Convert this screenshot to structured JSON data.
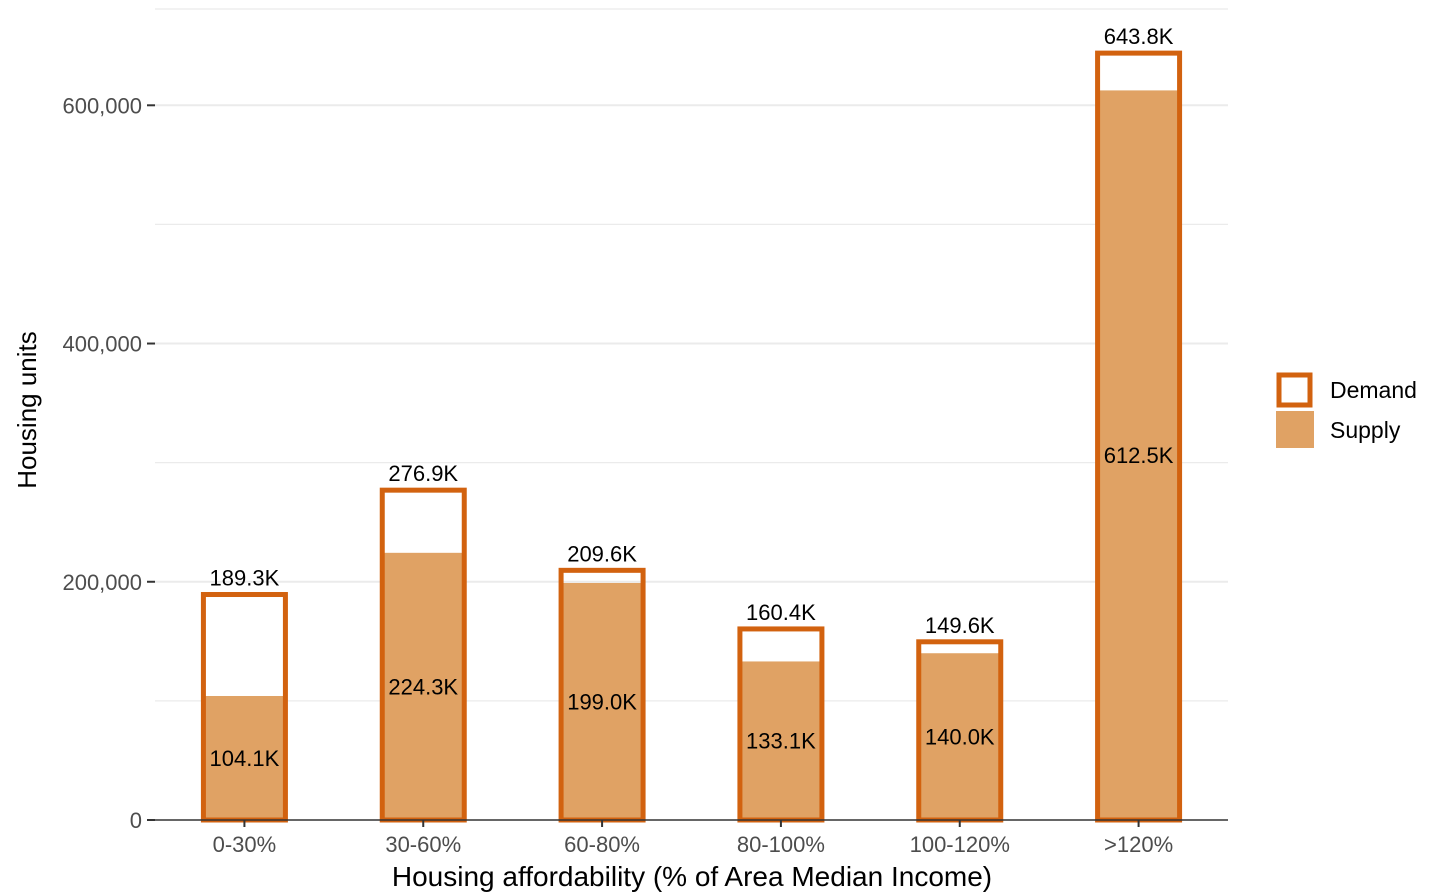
{
  "chart_data": {
    "type": "bar",
    "title": "",
    "xlabel": "Housing affordability (% of Area Median Income)",
    "ylabel": "Housing units",
    "categories": [
      "0-30%",
      "30-60%",
      "60-80%",
      "80-100%",
      "100-120%",
      ">120%"
    ],
    "series": [
      {
        "name": "Demand",
        "style": "outline",
        "values": [
          189300,
          276900,
          209600,
          160400,
          149600,
          643800
        ],
        "labels": [
          "189.3K",
          "276.9K",
          "209.6K",
          "160.4K",
          "149.6K",
          "643.8K"
        ]
      },
      {
        "name": "Supply",
        "style": "fill",
        "values": [
          104100,
          224300,
          199000,
          133100,
          140000,
          612500
        ],
        "labels": [
          "104.1K",
          "224.3K",
          "199.0K",
          "133.1K",
          "140.0K",
          "612.5K"
        ]
      }
    ],
    "ylim": [
      0,
      680000
    ],
    "y_ticks": [
      0,
      200000,
      400000,
      600000
    ],
    "y_tick_labels": [
      "0",
      "200,000",
      "400,000",
      "600,000"
    ],
    "grid": true,
    "legend_position": "right",
    "colors": {
      "demand_outline": "#d2620f",
      "supply_fill": "#e0a264",
      "grid": "#ebebeb",
      "axis": "#333333"
    }
  }
}
